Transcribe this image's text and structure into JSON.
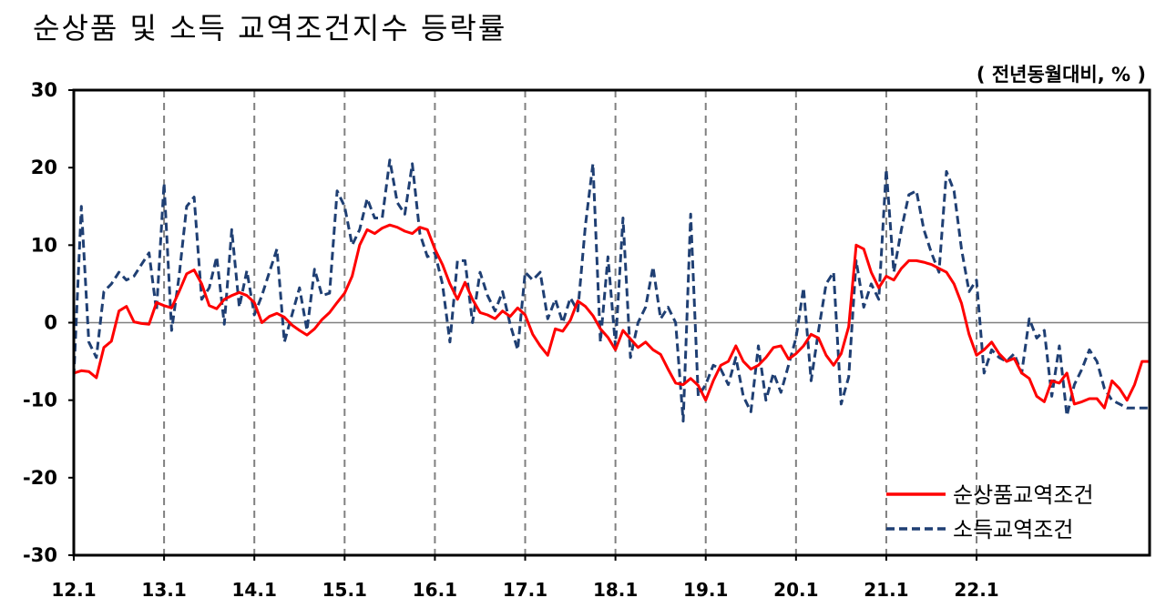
{
  "colors": {
    "net": "#ff0000",
    "income": "#1f3f73",
    "grid": "#808080",
    "frame": "#000000"
  },
  "chart_data": {
    "type": "line",
    "title": "순상품 및 소득 교역조건지수 등락률",
    "unit_label": "( 전년동월대비, % )",
    "ylim": [
      -30,
      30
    ],
    "yticks": [
      "30",
      "20",
      "10",
      "0",
      "-10",
      "-20",
      "-30"
    ],
    "xticks": [
      "12.1",
      "13.1",
      "14.1",
      "15.1",
      "16.1",
      "17.1",
      "18.1",
      "19.1",
      "20.1",
      "21.1",
      "22.1"
    ],
    "x_start": "2012-01",
    "vertical_gridlines": "dashed at each January",
    "legend_position": "bottom-right",
    "series": [
      {
        "name": "순상품교역조건",
        "style": "solid",
        "color": "#ff0000",
        "values": [
          -6.5,
          -6.2,
          -6.3,
          -7.1,
          -3.2,
          -2.4,
          1.5,
          2.1,
          0.1,
          -0.1,
          -0.2,
          2.6,
          2.2,
          1.9,
          4.0,
          6.3,
          6.8,
          5.0,
          2.2,
          1.8,
          3.0,
          3.5,
          3.9,
          3.5,
          2.6,
          0.0,
          0.8,
          1.2,
          0.7,
          -0.3,
          -1.0,
          -1.6,
          -0.8,
          0.4,
          1.3,
          2.6,
          3.8,
          6.0,
          10.0,
          12.0,
          11.5,
          12.2,
          12.6,
          12.3,
          11.8,
          11.5,
          12.3,
          12.0,
          9.5,
          7.5,
          5.0,
          3.0,
          5.2,
          3.0,
          1.3,
          1.0,
          0.5,
          1.5,
          0.8,
          1.9,
          1.0,
          -1.5,
          -3.0,
          -4.2,
          -0.8,
          -1.1,
          0.3,
          2.8,
          2.1,
          0.9,
          -0.8,
          -1.9,
          -3.5,
          -1.0,
          -2.1,
          -3.2,
          -2.5,
          -3.5,
          -4.1,
          -6.0,
          -7.8,
          -8.0,
          -7.2,
          -8.1,
          -10.0,
          -7.5,
          -5.5,
          -5.0,
          -3.0,
          -5.0,
          -6.0,
          -5.5,
          -4.5,
          -3.2,
          -3.0,
          -4.7,
          -4.0,
          -3.0,
          -1.5,
          -2.0,
          -4.2,
          -5.5,
          -4.0,
          -0.5,
          10.0,
          9.5,
          6.5,
          4.5,
          6.0,
          5.5,
          7.0,
          8.0,
          8.0,
          7.8,
          7.5,
          7.0,
          6.5,
          5.0,
          2.5,
          -1.5,
          -4.2,
          -3.5,
          -2.5,
          -4.0,
          -5.0,
          -4.6,
          -6.5,
          -7.2,
          -9.5,
          -10.2,
          -7.5,
          -7.8,
          -6.5,
          -10.5,
          -10.2,
          -9.8,
          -9.8,
          -11.0,
          -7.5,
          -8.5,
          -10.0,
          -8.0,
          -5.0,
          -5.0
        ]
      },
      {
        "name": "소득교역조건",
        "style": "dashed",
        "color": "#1f3f73",
        "values": [
          -7.0,
          15.0,
          -2.5,
          -4.5,
          4.0,
          5.0,
          6.5,
          5.5,
          6.0,
          7.5,
          9.0,
          1.5,
          18.0,
          -1.0,
          6.0,
          15.0,
          16.2,
          3.0,
          4.5,
          8.5,
          -0.2,
          12.0,
          2.0,
          6.7,
          1.0,
          3.5,
          6.5,
          9.5,
          -2.5,
          1.0,
          4.5,
          -1.0,
          6.9,
          3.5,
          3.8,
          17.0,
          15.0,
          10.0,
          12.0,
          16.0,
          13.5,
          13.5,
          21.0,
          15.5,
          14.0,
          20.5,
          11.5,
          8.5,
          9.0,
          5.0,
          -2.5,
          8.0,
          8.0,
          0.0,
          6.5,
          3.5,
          1.5,
          4.0,
          -0.2,
          -3.5,
          6.5,
          5.5,
          6.5,
          0.5,
          3.0,
          0.0,
          3.2,
          1.5,
          12.5,
          20.5,
          -2.5,
          8.5,
          -3.0,
          13.5,
          -4.5,
          0.0,
          2.0,
          7.2,
          0.5,
          2.0,
          0.0,
          -12.7,
          14.0,
          -9.5,
          -8.0,
          -5.5,
          -6.0,
          -8.0,
          -4.5,
          -9.5,
          -11.5,
          -3.0,
          -10.0,
          -6.5,
          -9.0,
          -5.5,
          -2.0,
          4.5,
          -7.5,
          -1.0,
          5.0,
          6.5,
          -10.5,
          -7.0,
          8.0,
          2.0,
          5.0,
          3.0,
          19.8,
          6.5,
          12.0,
          16.5,
          17.0,
          12.0,
          9.0,
          6.5,
          19.5,
          17.0,
          9.5,
          4.0,
          5.5,
          -6.5,
          -3.5,
          -4.5,
          -5.0,
          -4.0,
          -6.5,
          0.5,
          -2.0,
          -1.0,
          -9.5,
          -3.0,
          -12.0,
          -8.0,
          -6.0,
          -3.5,
          -5.0,
          -8.5,
          -10.0,
          -10.5,
          -11.0,
          -11.0,
          -11.0,
          -11.0
        ]
      }
    ]
  }
}
